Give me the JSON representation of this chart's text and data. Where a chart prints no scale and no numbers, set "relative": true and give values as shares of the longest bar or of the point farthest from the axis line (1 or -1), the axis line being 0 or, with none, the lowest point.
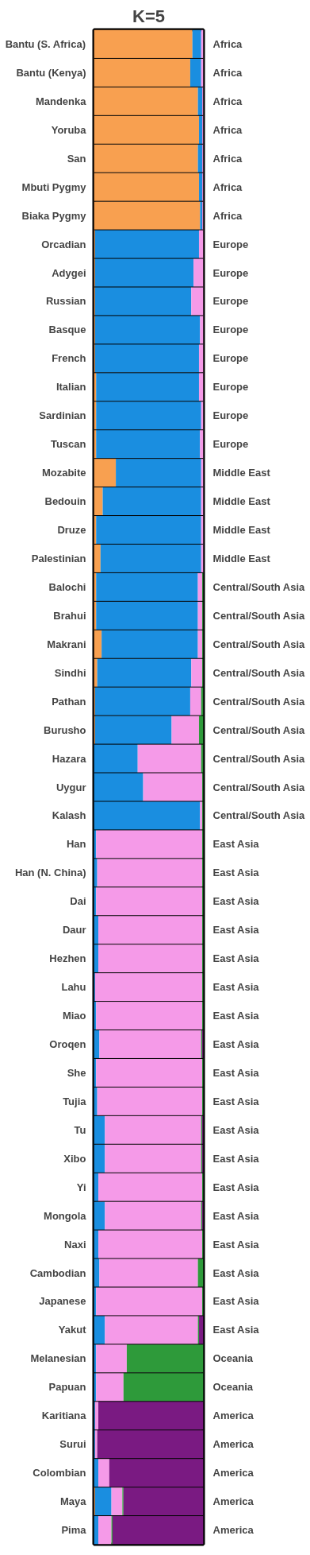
{
  "chart_data": {
    "type": "bar",
    "orientation": "horizontal",
    "stacked": true,
    "relative": true,
    "title": "K=5",
    "grid": false,
    "categories": [
      "Bantu (S. Africa)",
      "Bantu (Kenya)",
      "Mandenka",
      "Yoruba",
      "San",
      "Mbuti Pygmy",
      "Biaka Pygmy",
      "Orcadian",
      "Adygei",
      "Russian",
      "Basque",
      "French",
      "Italian",
      "Sardinian",
      "Tuscan",
      "Mozabite",
      "Bedouin",
      "Druze",
      "Palestinian",
      "Balochi",
      "Brahui",
      "Makrani",
      "Sindhi",
      "Pathan",
      "Burusho",
      "Hazara",
      "Uygur",
      "Kalash",
      "Han",
      "Han (N. China)",
      "Dai",
      "Daur",
      "Hezhen",
      "Lahu",
      "Miao",
      "Oroqen",
      "She",
      "Tujia",
      "Tu",
      "Xibo",
      "Yi",
      "Mongola",
      "Naxi",
      "Cambodian",
      "Japanese",
      "Yakut",
      "Melanesian",
      "Papuan",
      "Karitiana",
      "Surui",
      "Colombian",
      "Maya",
      "Pima"
    ],
    "series": [
      {
        "color": "#f8a050",
        "values": [
          0.9,
          0.88,
          0.95,
          0.96,
          0.95,
          0.96,
          0.97,
          0.01,
          0.01,
          0.01,
          0.01,
          0.01,
          0.02,
          0.02,
          0.02,
          0.2,
          0.08,
          0.02,
          0.06,
          0.02,
          0.02,
          0.07,
          0.03,
          0.01,
          0.01,
          0,
          0,
          0,
          0,
          0,
          0,
          0,
          0,
          0,
          0,
          0,
          0,
          0,
          0,
          0,
          0,
          0,
          0,
          0,
          0,
          0,
          0,
          0,
          0,
          0,
          0,
          0.01,
          0
        ]
      },
      {
        "color": "#1a8ee0",
        "values": [
          0.08,
          0.1,
          0.04,
          0.03,
          0.04,
          0.03,
          0.02,
          0.95,
          0.9,
          0.88,
          0.96,
          0.95,
          0.94,
          0.96,
          0.95,
          0.78,
          0.9,
          0.96,
          0.92,
          0.93,
          0.93,
          0.88,
          0.86,
          0.87,
          0.7,
          0.4,
          0.45,
          0.97,
          0.02,
          0.03,
          0.02,
          0.04,
          0.04,
          0.01,
          0.02,
          0.05,
          0.02,
          0.03,
          0.1,
          0.1,
          0.04,
          0.1,
          0.04,
          0.05,
          0.02,
          0.1,
          0.02,
          0.02,
          0.01,
          0.01,
          0.04,
          0.15,
          0.04
        ]
      },
      {
        "color": "#f59ae8",
        "values": [
          0.02,
          0.02,
          0.01,
          0.01,
          0.01,
          0.01,
          0.01,
          0.04,
          0.09,
          0.11,
          0.03,
          0.04,
          0.04,
          0.02,
          0.03,
          0.02,
          0.02,
          0.02,
          0.02,
          0.04,
          0.04,
          0.04,
          0.1,
          0.1,
          0.25,
          0.58,
          0.54,
          0.02,
          0.97,
          0.96,
          0.97,
          0.95,
          0.95,
          0.98,
          0.97,
          0.93,
          0.97,
          0.96,
          0.88,
          0.88,
          0.95,
          0.88,
          0.95,
          0.9,
          0.97,
          0.85,
          0.28,
          0.25,
          0.03,
          0.02,
          0.1,
          0.1,
          0.12
        ]
      },
      {
        "color": "#2e9a3a",
        "values": [
          0,
          0,
          0,
          0,
          0,
          0,
          0,
          0,
          0,
          0,
          0,
          0,
          0,
          0,
          0,
          0,
          0,
          0,
          0,
          0.01,
          0.01,
          0.01,
          0.01,
          0.02,
          0.04,
          0.02,
          0.01,
          0.01,
          0.01,
          0.01,
          0.01,
          0.01,
          0.01,
          0.01,
          0.01,
          0.01,
          0.01,
          0.01,
          0.01,
          0.01,
          0.01,
          0.01,
          0.01,
          0.05,
          0.01,
          0.01,
          0.7,
          0.73,
          0,
          0,
          0,
          0.01,
          0.01
        ]
      },
      {
        "color": "#7a1a82",
        "values": [
          0,
          0,
          0,
          0,
          0,
          0,
          0,
          0,
          0,
          0,
          0,
          0,
          0,
          0,
          0,
          0,
          0,
          0,
          0,
          0,
          0,
          0,
          0,
          0,
          0,
          0,
          0,
          0,
          0,
          0,
          0,
          0,
          0,
          0,
          0,
          0.01,
          0,
          0,
          0.01,
          0.01,
          0,
          0.01,
          0,
          0,
          0,
          0.04,
          0,
          0,
          0.96,
          0.97,
          0.86,
          0.73,
          0.83
        ]
      }
    ],
    "annotations": [
      "Africa",
      "Africa",
      "Africa",
      "Africa",
      "Africa",
      "Africa",
      "Africa",
      "Europe",
      "Europe",
      "Europe",
      "Europe",
      "Europe",
      "Europe",
      "Europe",
      "Europe",
      "Middle East",
      "Middle East",
      "Middle East",
      "Middle East",
      "Central/South Asia",
      "Central/South Asia",
      "Central/South Asia",
      "Central/South Asia",
      "Central/South Asia",
      "Central/South Asia",
      "Central/South Asia",
      "Central/South Asia",
      "Central/South Asia",
      "East Asia",
      "East Asia",
      "East Asia",
      "East Asia",
      "East Asia",
      "East Asia",
      "East Asia",
      "East Asia",
      "East Asia",
      "East Asia",
      "East Asia",
      "East Asia",
      "East Asia",
      "East Asia",
      "East Asia",
      "East Asia",
      "East Asia",
      "East Asia",
      "Oceania",
      "Oceania",
      "America",
      "America",
      "America",
      "America",
      "America"
    ]
  }
}
